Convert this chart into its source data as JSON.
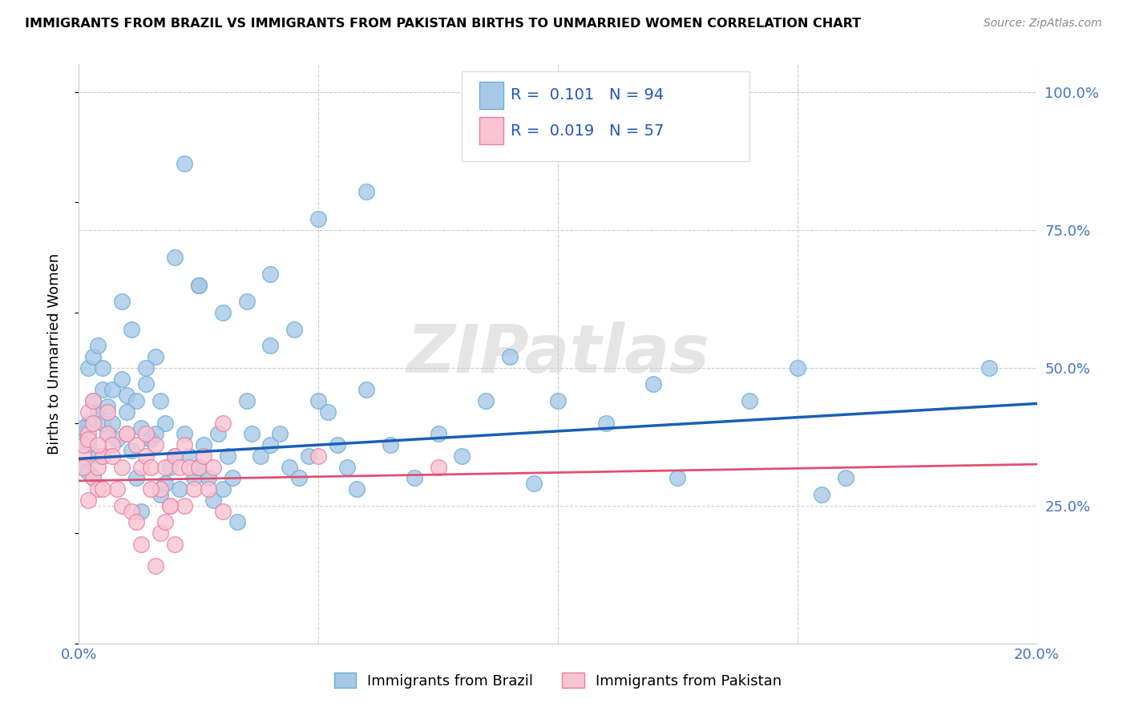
{
  "title": "IMMIGRANTS FROM BRAZIL VS IMMIGRANTS FROM PAKISTAN BIRTHS TO UNMARRIED WOMEN CORRELATION CHART",
  "source": "Source: ZipAtlas.com",
  "ylabel": "Births to Unmarried Women",
  "xmin": 0.0,
  "xmax": 0.2,
  "ymin": 0.0,
  "ymax": 1.05,
  "brazil_color": "#a8c8e8",
  "brazil_edge_color": "#6baed6",
  "pakistan_color": "#f9c4d4",
  "pakistan_edge_color": "#e87fa0",
  "brazil_line_color": "#1a5fb4",
  "pakistan_line_color": "#e05070",
  "brazil_R": 0.101,
  "brazil_N": 94,
  "pakistan_R": 0.019,
  "pakistan_N": 57,
  "legend_label_brazil": "Immigrants from Brazil",
  "legend_label_pakistan": "Immigrants from Pakistan",
  "watermark": "ZIPatlas",
  "brazil_line_y0": 0.335,
  "brazil_line_y1": 0.435,
  "pakistan_line_y0": 0.295,
  "pakistan_line_y1": 0.325,
  "brazil_scatter": [
    [
      0.001,
      0.38
    ],
    [
      0.002,
      0.4
    ],
    [
      0.003,
      0.44
    ],
    [
      0.001,
      0.32
    ],
    [
      0.002,
      0.36
    ],
    [
      0.004,
      0.42
    ],
    [
      0.003,
      0.3
    ],
    [
      0.005,
      0.46
    ],
    [
      0.002,
      0.5
    ],
    [
      0.001,
      0.39
    ],
    [
      0.006,
      0.38
    ],
    [
      0.004,
      0.34
    ],
    [
      0.007,
      0.46
    ],
    [
      0.003,
      0.52
    ],
    [
      0.005,
      0.4
    ],
    [
      0.008,
      0.37
    ],
    [
      0.006,
      0.43
    ],
    [
      0.002,
      0.31
    ],
    [
      0.009,
      0.48
    ],
    [
      0.004,
      0.54
    ],
    [
      0.01,
      0.45
    ],
    [
      0.007,
      0.4
    ],
    [
      0.011,
      0.57
    ],
    [
      0.005,
      0.5
    ],
    [
      0.012,
      0.44
    ],
    [
      0.013,
      0.39
    ],
    [
      0.009,
      0.62
    ],
    [
      0.014,
      0.47
    ],
    [
      0.01,
      0.42
    ],
    [
      0.015,
      0.37
    ],
    [
      0.016,
      0.52
    ],
    [
      0.011,
      0.35
    ],
    [
      0.017,
      0.44
    ],
    [
      0.012,
      0.3
    ],
    [
      0.018,
      0.4
    ],
    [
      0.013,
      0.24
    ],
    [
      0.014,
      0.5
    ],
    [
      0.015,
      0.37
    ],
    [
      0.016,
      0.38
    ],
    [
      0.017,
      0.27
    ],
    [
      0.018,
      0.29
    ],
    [
      0.019,
      0.32
    ],
    [
      0.02,
      0.34
    ],
    [
      0.021,
      0.28
    ],
    [
      0.022,
      0.38
    ],
    [
      0.023,
      0.34
    ],
    [
      0.024,
      0.3
    ],
    [
      0.025,
      0.32
    ],
    [
      0.026,
      0.36
    ],
    [
      0.027,
      0.3
    ],
    [
      0.028,
      0.26
    ],
    [
      0.029,
      0.38
    ],
    [
      0.03,
      0.28
    ],
    [
      0.031,
      0.34
    ],
    [
      0.032,
      0.3
    ],
    [
      0.033,
      0.22
    ],
    [
      0.035,
      0.44
    ],
    [
      0.036,
      0.38
    ],
    [
      0.038,
      0.34
    ],
    [
      0.04,
      0.36
    ],
    [
      0.042,
      0.38
    ],
    [
      0.044,
      0.32
    ],
    [
      0.046,
      0.3
    ],
    [
      0.048,
      0.34
    ],
    [
      0.05,
      0.44
    ],
    [
      0.052,
      0.42
    ],
    [
      0.054,
      0.36
    ],
    [
      0.056,
      0.32
    ],
    [
      0.058,
      0.28
    ],
    [
      0.06,
      0.46
    ],
    [
      0.065,
      0.36
    ],
    [
      0.07,
      0.3
    ],
    [
      0.075,
      0.38
    ],
    [
      0.08,
      0.34
    ],
    [
      0.03,
      0.6
    ],
    [
      0.02,
      0.7
    ],
    [
      0.04,
      0.67
    ],
    [
      0.04,
      0.54
    ],
    [
      0.035,
      0.62
    ],
    [
      0.025,
      0.65
    ],
    [
      0.045,
      0.57
    ],
    [
      0.05,
      0.77
    ],
    [
      0.06,
      0.82
    ],
    [
      0.025,
      0.65
    ],
    [
      0.022,
      0.87
    ],
    [
      0.085,
      0.44
    ],
    [
      0.09,
      0.52
    ],
    [
      0.095,
      0.29
    ],
    [
      0.1,
      0.44
    ],
    [
      0.11,
      0.4
    ],
    [
      0.12,
      0.47
    ],
    [
      0.125,
      0.3
    ],
    [
      0.14,
      0.44
    ],
    [
      0.15,
      0.5
    ],
    [
      0.155,
      0.27
    ],
    [
      0.16,
      0.3
    ],
    [
      0.19,
      0.5
    ]
  ],
  "pakistan_scatter": [
    [
      0.001,
      0.34
    ],
    [
      0.002,
      0.38
    ],
    [
      0.003,
      0.3
    ],
    [
      0.001,
      0.36
    ],
    [
      0.002,
      0.42
    ],
    [
      0.004,
      0.28
    ],
    [
      0.003,
      0.44
    ],
    [
      0.005,
      0.34
    ],
    [
      0.002,
      0.26
    ],
    [
      0.001,
      0.32
    ],
    [
      0.006,
      0.38
    ],
    [
      0.004,
      0.32
    ],
    [
      0.007,
      0.36
    ],
    [
      0.003,
      0.4
    ],
    [
      0.005,
      0.34
    ],
    [
      0.008,
      0.28
    ],
    [
      0.006,
      0.42
    ],
    [
      0.002,
      0.37
    ],
    [
      0.009,
      0.32
    ],
    [
      0.004,
      0.36
    ],
    [
      0.01,
      0.38
    ],
    [
      0.007,
      0.34
    ],
    [
      0.005,
      0.28
    ],
    [
      0.012,
      0.36
    ],
    [
      0.013,
      0.32
    ],
    [
      0.009,
      0.25
    ],
    [
      0.014,
      0.34
    ],
    [
      0.01,
      0.38
    ],
    [
      0.015,
      0.32
    ],
    [
      0.016,
      0.36
    ],
    [
      0.011,
      0.24
    ],
    [
      0.017,
      0.28
    ],
    [
      0.012,
      0.22
    ],
    [
      0.018,
      0.32
    ],
    [
      0.013,
      0.18
    ],
    [
      0.019,
      0.25
    ],
    [
      0.014,
      0.38
    ],
    [
      0.02,
      0.34
    ],
    [
      0.015,
      0.28
    ],
    [
      0.021,
      0.32
    ],
    [
      0.016,
      0.14
    ],
    [
      0.022,
      0.25
    ],
    [
      0.017,
      0.2
    ],
    [
      0.023,
      0.32
    ],
    [
      0.024,
      0.28
    ],
    [
      0.018,
      0.22
    ],
    [
      0.025,
      0.32
    ],
    [
      0.019,
      0.25
    ],
    [
      0.026,
      0.34
    ],
    [
      0.02,
      0.18
    ],
    [
      0.027,
      0.28
    ],
    [
      0.028,
      0.32
    ],
    [
      0.03,
      0.24
    ],
    [
      0.022,
      0.36
    ],
    [
      0.05,
      0.34
    ],
    [
      0.075,
      0.32
    ],
    [
      0.03,
      0.4
    ]
  ]
}
